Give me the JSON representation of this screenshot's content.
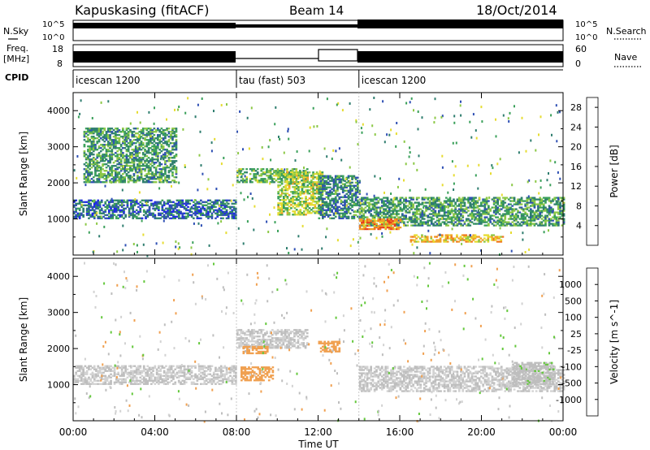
{
  "header": {
    "station": "Kapuskasing (fitACF)",
    "beam": "Beam 14",
    "date": "18/Oct/2014"
  },
  "top_panels": {
    "nsky_label": "N.Sky",
    "nsky_ticks": [
      "10^5",
      "10^0"
    ],
    "nsearch_label": "N.Search",
    "nsearch_ticks": [
      "10^5",
      "10^0"
    ],
    "freq_label": "Freq.",
    "freq_unit": "[MHz]",
    "freq_ticks": [
      "18",
      "8"
    ],
    "nave_label": "Nave",
    "nave_ticks": [
      "60",
      "0"
    ],
    "cpid_label": "CPID"
  },
  "cpid_segments": [
    {
      "label": "icescan 1200",
      "start_hour": 0,
      "end_hour": 8.0
    },
    {
      "label": "tau (fast) 503",
      "start_hour": 8.0,
      "end_hour": 14.0
    },
    {
      "label": "icescan 1200",
      "start_hour": 14.0,
      "end_hour": 24.0
    }
  ],
  "xaxis": {
    "label": "Time UT",
    "ticks": [
      "00:00",
      "04:00",
      "08:00",
      "12:00",
      "16:00",
      "20:00",
      "00:00"
    ]
  },
  "colors": {
    "power_scale": [
      "#1e28e6",
      "#2e4fb4",
      "#2e7d6e",
      "#3aa05a",
      "#8cc846",
      "#e6dc32",
      "#f0a028",
      "#f07820",
      "#e63c1e",
      "#e60000"
    ],
    "velocity_scale": [
      "#e60000",
      "#f04a00",
      "#f07814",
      "#f0a050",
      "#d2d2d2",
      "#bebebe",
      "#64c83c",
      "#3c9650",
      "#2e6e96",
      "#1e28c8"
    ]
  },
  "chart_data": [
    {
      "type": "heatmap",
      "panel": "power",
      "title": "",
      "xlabel": "Time UT",
      "ylabel": "Slant Range [km]",
      "xlim_hours": [
        0,
        24
      ],
      "ylim_km": [
        0,
        4500
      ],
      "y_ticks": [
        1000,
        2000,
        3000,
        4000
      ],
      "colorbar_label": "Power [dB]",
      "colorbar_ticks": [
        4,
        8,
        12,
        16,
        20,
        24,
        28
      ],
      "colorbar_range": [
        0,
        30
      ],
      "features": [
        {
          "t0": 0.0,
          "t1": 8.0,
          "r0": 1000,
          "r1": 1500,
          "value": 6
        },
        {
          "t0": 0.5,
          "t1": 5.0,
          "r0": 2000,
          "r1": 3500,
          "value": 10
        },
        {
          "t0": 8.0,
          "t1": 11.5,
          "r0": 2000,
          "r1": 2400,
          "value": 12
        },
        {
          "t0": 10.0,
          "t1": 12.2,
          "r0": 1100,
          "r1": 2300,
          "value": 14
        },
        {
          "t0": 12.0,
          "t1": 14.0,
          "r0": 1000,
          "r1": 2200,
          "value": 8
        },
        {
          "t0": 14.0,
          "t1": 24.0,
          "r0": 800,
          "r1": 1600,
          "value": 10
        },
        {
          "t0": 14.0,
          "t1": 16.0,
          "r0": 700,
          "r1": 1000,
          "value": 22
        },
        {
          "t0": 16.5,
          "t1": 21.0,
          "r0": 350,
          "r1": 550,
          "value": 18
        }
      ]
    },
    {
      "type": "heatmap",
      "panel": "velocity",
      "title": "",
      "xlabel": "Time UT",
      "ylabel": "Slant Range [km]",
      "xlim_hours": [
        0,
        24
      ],
      "ylim_km": [
        0,
        4500
      ],
      "y_ticks": [
        1000,
        2000,
        3000,
        4000
      ],
      "colorbar_label": "Velocity [m s^-1]",
      "colorbar_ticks": [
        1000,
        500,
        100,
        25,
        -25,
        -100,
        -500,
        -1000
      ],
      "colorbar_range": [
        -1000,
        1000
      ],
      "features": [
        {
          "t0": 0.0,
          "t1": 8.0,
          "r0": 1000,
          "r1": 1500,
          "value": 0
        },
        {
          "t0": 8.0,
          "t1": 11.5,
          "r0": 2000,
          "r1": 2500,
          "value": 0
        },
        {
          "t0": 8.2,
          "t1": 9.8,
          "r0": 1100,
          "r1": 1500,
          "value": -300
        },
        {
          "t0": 8.3,
          "t1": 9.5,
          "r0": 1850,
          "r1": 2050,
          "value": -300
        },
        {
          "t0": 12.0,
          "t1": 13.0,
          "r0": 1900,
          "r1": 2200,
          "value": -300
        },
        {
          "t0": 14.0,
          "t1": 24.0,
          "r0": 800,
          "r1": 1500,
          "value": 0
        },
        {
          "t0": 21.5,
          "t1": 23.5,
          "r0": 1000,
          "r1": 1600,
          "value": 150
        }
      ]
    }
  ]
}
